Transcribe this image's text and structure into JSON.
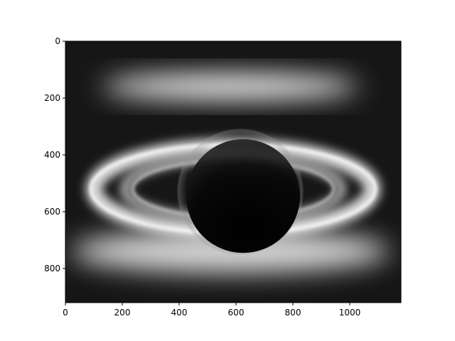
{
  "chart_data": {
    "type": "heatmap",
    "image_kind": "grayscale image (imshow)",
    "colormap": "gray",
    "title": "",
    "xlabel": "",
    "ylabel": "",
    "xlim": [
      0,
      1180
    ],
    "ylim": [
      920,
      0
    ],
    "x_ticks": [
      {
        "value": 0,
        "label": "0"
      },
      {
        "value": 200,
        "label": "200"
      },
      {
        "value": 400,
        "label": "400"
      },
      {
        "value": 600,
        "label": "600"
      },
      {
        "value": 800,
        "label": "800"
      },
      {
        "value": 1000,
        "label": "1000"
      }
    ],
    "y_ticks": [
      {
        "value": 0,
        "label": "0"
      },
      {
        "value": 200,
        "label": "200"
      },
      {
        "value": 400,
        "label": "400"
      },
      {
        "value": 600,
        "label": "600"
      },
      {
        "value": 800,
        "label": "800"
      }
    ],
    "grid": false,
    "legend": "none",
    "features": [
      {
        "name": "planet",
        "cx": 625,
        "cy": 545,
        "r": 200,
        "brightness": "dark"
      },
      {
        "name": "bright-ring-band",
        "cx": 590,
        "cy": 520,
        "rx": 490,
        "ry": 150
      },
      {
        "name": "inner-ring-band",
        "cx": 590,
        "cy": 520,
        "rx": 380,
        "ry": 110
      },
      {
        "name": "upper-glow",
        "cx": 580,
        "cy": 160,
        "rx": 450,
        "ry": 45
      },
      {
        "name": "lower-glow",
        "cx": 580,
        "cy": 740,
        "rx": 560,
        "ry": 75
      }
    ]
  }
}
